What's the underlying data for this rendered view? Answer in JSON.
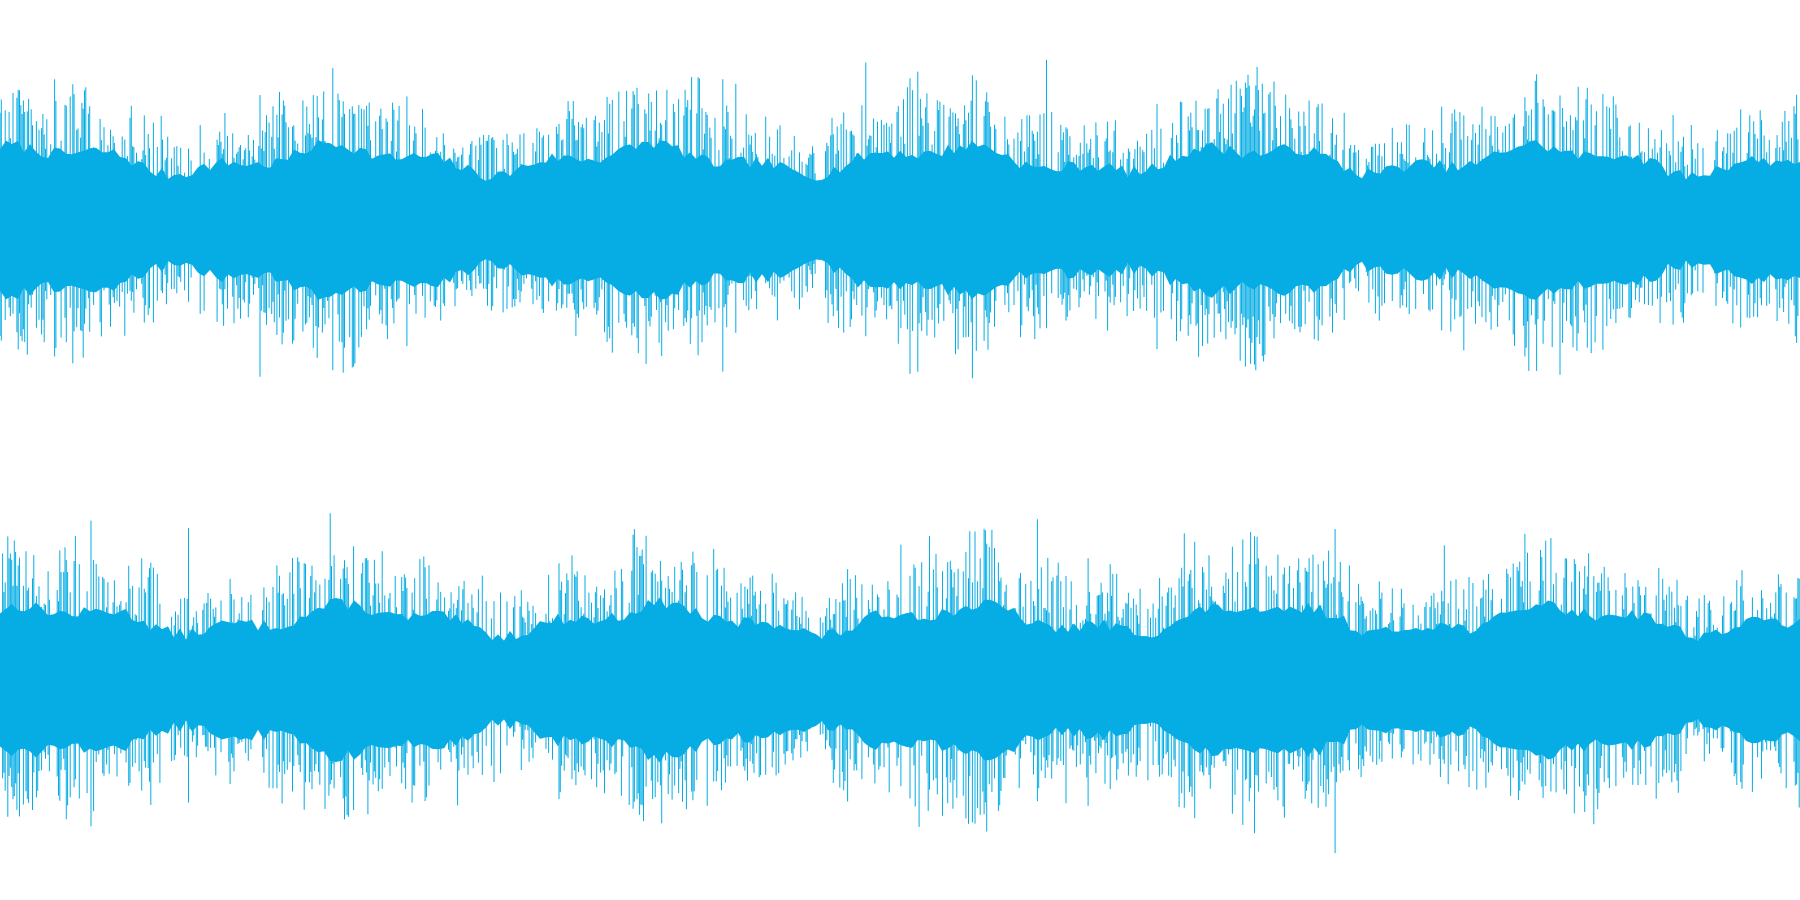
{
  "waveform": {
    "color": "#06ADE4",
    "channels": [
      {
        "id": "left"
      },
      {
        "id": "right"
      }
    ]
  }
}
